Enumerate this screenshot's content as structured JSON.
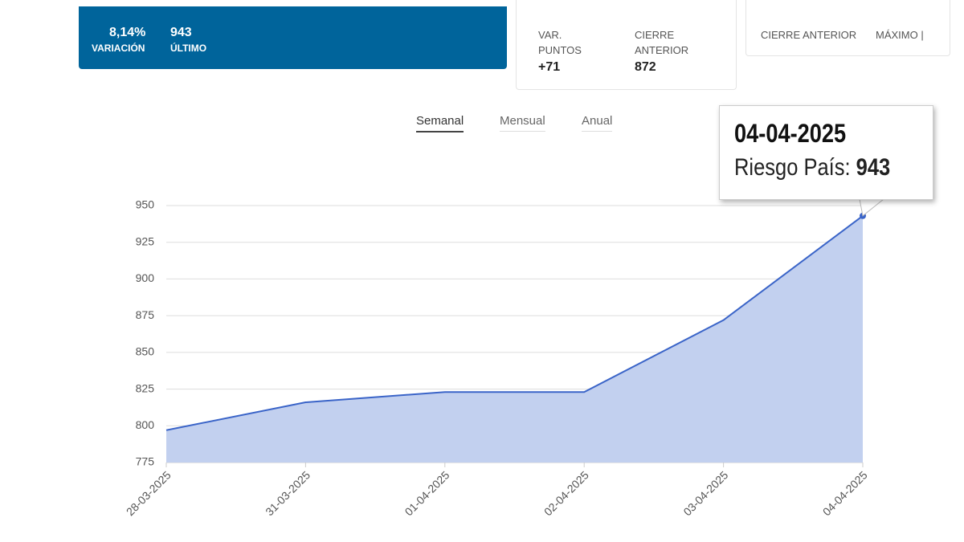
{
  "summary": {
    "variation": "8,14%",
    "variation_label": "VARIACIÓN",
    "last": "943",
    "last_label": "ÚLTIMO"
  },
  "stats": {
    "points_label": "VAR. PUNTOS",
    "points": "+71",
    "prev_close_label": "CIERRE ANTERIOR",
    "prev_close": "872"
  },
  "stats2": {
    "prev_close_label": "CIERRE ANTERIOR",
    "max_label": "MÁXIMO |"
  },
  "tabs": [
    "Semanal",
    "Mensual",
    "Anual"
  ],
  "tooltip": {
    "date": "04-04-2025",
    "label": "Riesgo País:",
    "value": 943
  },
  "chart_data": {
    "type": "area",
    "categories": [
      "28-03-2025",
      "31-03-2025",
      "01-04-2025",
      "02-04-2025",
      "03-04-2025",
      "04-04-2025"
    ],
    "series": [
      {
        "name": "Riesgo País",
        "color": "#3a64c8",
        "values": [
          797,
          816,
          823,
          823,
          872,
          943
        ]
      }
    ],
    "ylim": [
      775,
      950
    ],
    "yticks": [
      775,
      800,
      825,
      850,
      875,
      900,
      925,
      950
    ],
    "grid": true
  }
}
